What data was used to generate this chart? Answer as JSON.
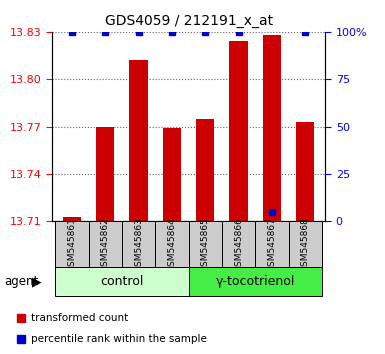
{
  "title": "GDS4059 / 212191_x_at",
  "samples": [
    "GSM545861",
    "GSM545862",
    "GSM545863",
    "GSM545864",
    "GSM545865",
    "GSM545866",
    "GSM545867",
    "GSM545868"
  ],
  "red_values": [
    13.713,
    13.77,
    13.812,
    13.769,
    13.775,
    13.824,
    13.828,
    13.773
  ],
  "blue_values": [
    100,
    100,
    100,
    100,
    100,
    100,
    5,
    100
  ],
  "ylim_left": [
    13.71,
    13.83
  ],
  "ylim_right": [
    0,
    100
  ],
  "yticks_left": [
    13.71,
    13.74,
    13.77,
    13.8,
    13.83
  ],
  "yticks_right": [
    0,
    25,
    50,
    75,
    100
  ],
  "ytick_labels_left": [
    "13.71",
    "13.74",
    "13.77",
    "13.80",
    "13.83"
  ],
  "ytick_labels_right": [
    "0",
    "25",
    "50",
    "75",
    "100%"
  ],
  "control_label": "control",
  "treatment_label": "γ-tocotrienol",
  "agent_label": "agent",
  "legend_red": "transformed count",
  "legend_blue": "percentile rank within the sample",
  "bar_color": "#cc0000",
  "blue_color": "#0000cc",
  "control_bg": "#ccffcc",
  "treatment_bg": "#44ee44",
  "sample_bg": "#cccccc",
  "bar_bottom": 13.71,
  "bar_width": 0.55
}
